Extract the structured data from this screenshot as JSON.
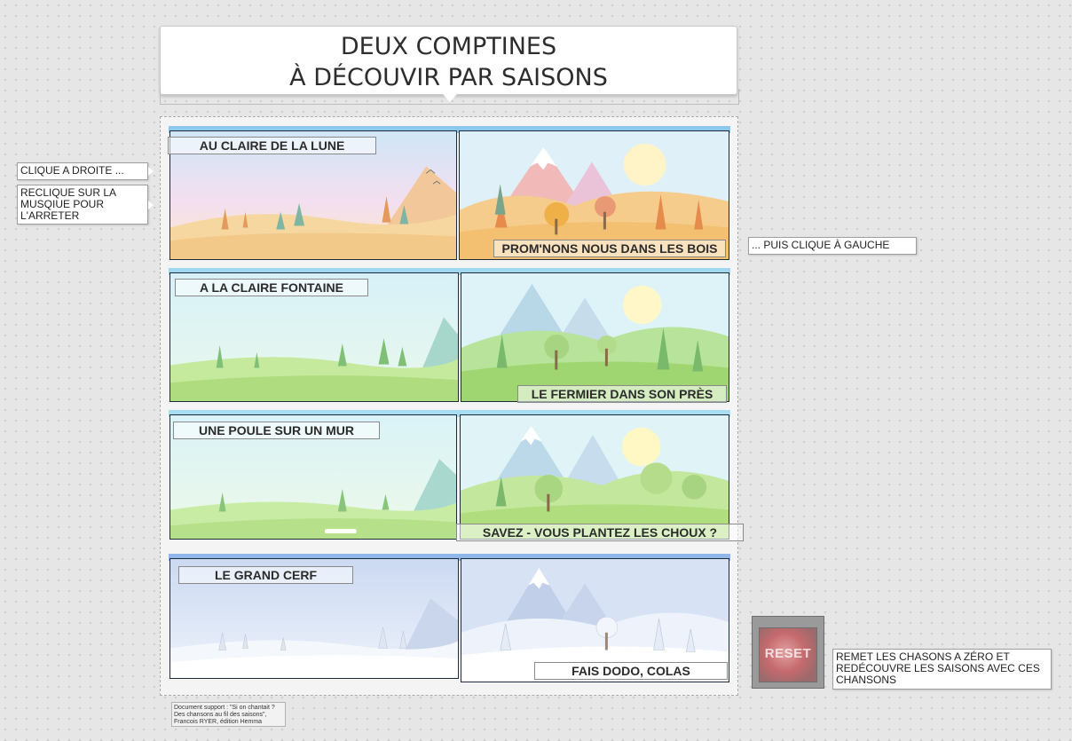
{
  "title": {
    "line1": "DEUX COMPTINES",
    "line2": "À DÉCOUVIR PAR SAISONS"
  },
  "songs": [
    {
      "label": "AU CLAIRE DE LA LUNE",
      "season": "autumn"
    },
    {
      "label": "PROM'NONS NOUS DANS LES BOIS",
      "season": "autumn"
    },
    {
      "label": "A LA CLAIRE FONTAINE",
      "season": "spring"
    },
    {
      "label": "LE FERMIER DANS SON PRÈS",
      "season": "spring"
    },
    {
      "label": "UNE POULE SUR UN MUR",
      "season": "summer"
    },
    {
      "label": "SAVEZ - VOUS PLANTEZ LES CHOUX ?",
      "season": "summer"
    },
    {
      "label": "LE GRAND CERF",
      "season": "winter"
    },
    {
      "label": "FAIS DODO, COLAS",
      "season": "winter"
    }
  ],
  "instructions": {
    "click_right": "CLIQUE A DROITE ...",
    "reclick": "RECLIQUE SUR LA MUSQIUE POUR L'ARRETER",
    "click_left": "... PUIS CLIQUE À GAUCHE",
    "reset_note": "REMET LES CHASONS A ZÉRO ET REDÉCOUVRE LES SAISONS AVEC CES CHANSONS"
  },
  "reset": {
    "label": "RESET",
    "icon": "reset-button-icon"
  },
  "credit": "Document support : \"Si on chantait ? Des chansons au fil des saisons\", Francois RYER, édition Hemma",
  "colors": {
    "autumn": {
      "sky": "#cfe6f7",
      "hill": "#f6d7a0",
      "ground": "#f3c98a",
      "mountain": "#f0b591"
    },
    "spring": {
      "sky": "#d7f1f8",
      "hill": "#b7e39a",
      "ground": "#a8d97b",
      "mountain": "#9fd0c9"
    },
    "summer": {
      "sky": "#d9f3f8",
      "hill": "#c6eaa0",
      "ground": "#b3df86",
      "mountain": "#a8d8cf"
    },
    "winter": {
      "sky": "#cfdcf3",
      "hill": "#f1f5fb",
      "ground": "#ffffff",
      "mountain": "#c6d3ea"
    },
    "row_strip": [
      "#8cc8ee",
      "#9fd7ef",
      "#a8dff0",
      "#8fb7ea"
    ]
  }
}
